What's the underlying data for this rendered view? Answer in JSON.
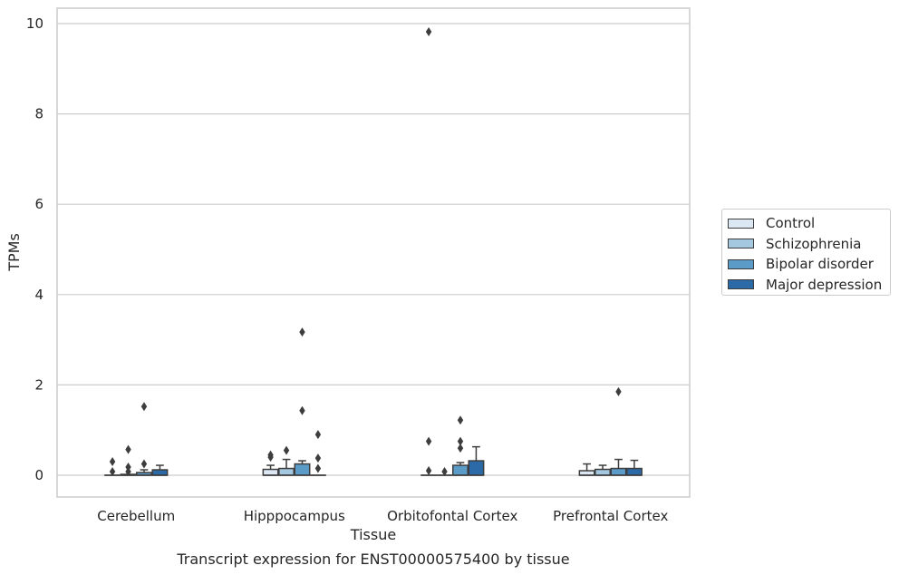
{
  "chart_data": {
    "type": "box",
    "title": "Transcript expression for ENST00000575400 by tissue",
    "xlabel": "Tissue",
    "ylabel": "TPMs",
    "ylim": [
      -0.47,
      10.35
    ],
    "yticks": [
      0,
      2,
      4,
      6,
      8,
      10
    ],
    "grid": true,
    "legend_position": "right",
    "categories": [
      "Cerebellum",
      "Hipppocampus",
      "Orbitofontal Cortex",
      "Prefrontal Cortex"
    ],
    "series": [
      {
        "name": "Control",
        "color": "#dbe8f3",
        "boxes": [
          {
            "whislo": 0,
            "q1": 0,
            "med": 0,
            "q3": 0,
            "whishi": 0,
            "fliers": [
              0.3,
              0.08
            ]
          },
          {
            "whislo": 0,
            "q1": 0,
            "med": 0,
            "q3": 0.13,
            "whishi": 0.22,
            "fliers": [
              0.45,
              0.4
            ]
          },
          {
            "whislo": 0,
            "q1": 0,
            "med": 0,
            "q3": 0,
            "whishi": 0,
            "fliers": [
              9.82,
              0.75,
              0.1
            ]
          },
          {
            "whislo": 0,
            "q1": 0,
            "med": 0,
            "q3": 0.1,
            "whishi": 0.25,
            "fliers": []
          }
        ]
      },
      {
        "name": "Schizophrenia",
        "color": "#a4c8e0",
        "boxes": [
          {
            "whislo": 0,
            "q1": 0,
            "med": 0,
            "q3": 0.02,
            "whishi": 0.02,
            "fliers": [
              0.57,
              0.18,
              0.08
            ]
          },
          {
            "whislo": 0,
            "q1": 0,
            "med": 0,
            "q3": 0.15,
            "whishi": 0.35,
            "fliers": [
              0.55
            ]
          },
          {
            "whislo": 0,
            "q1": 0,
            "med": 0,
            "q3": 0,
            "whishi": 0,
            "fliers": [
              0.08
            ]
          },
          {
            "whislo": 0,
            "q1": 0,
            "med": 0,
            "q3": 0.13,
            "whishi": 0.22,
            "fliers": []
          }
        ]
      },
      {
        "name": "Bipolar disorder",
        "color": "#5b9bc8",
        "boxes": [
          {
            "whislo": 0,
            "q1": 0,
            "med": 0,
            "q3": 0.06,
            "whishi": 0.12,
            "fliers": [
              1.52,
              0.25
            ]
          },
          {
            "whislo": 0,
            "q1": 0,
            "med": 0,
            "q3": 0.25,
            "whishi": 0.32,
            "fliers": [
              3.17,
              1.43
            ]
          },
          {
            "whislo": 0,
            "q1": 0,
            "med": 0,
            "q3": 0.22,
            "whishi": 0.28,
            "fliers": [
              1.22,
              0.75,
              0.6
            ]
          },
          {
            "whislo": 0,
            "q1": 0,
            "med": 0,
            "q3": 0.15,
            "whishi": 0.35,
            "fliers": [
              1.85
            ]
          }
        ]
      },
      {
        "name": "Major depression",
        "color": "#2b6aa6",
        "boxes": [
          {
            "whislo": 0,
            "q1": 0,
            "med": 0,
            "q3": 0.12,
            "whishi": 0.22,
            "fliers": []
          },
          {
            "whislo": 0,
            "q1": 0,
            "med": 0,
            "q3": 0,
            "whishi": 0,
            "fliers": [
              0.9,
              0.38,
              0.15
            ]
          },
          {
            "whislo": 0,
            "q1": 0,
            "med": 0,
            "q3": 0.32,
            "whishi": 0.63,
            "fliers": []
          },
          {
            "whislo": 0,
            "q1": 0,
            "med": 0,
            "q3": 0.15,
            "whishi": 0.33,
            "fliers": []
          }
        ]
      }
    ]
  }
}
